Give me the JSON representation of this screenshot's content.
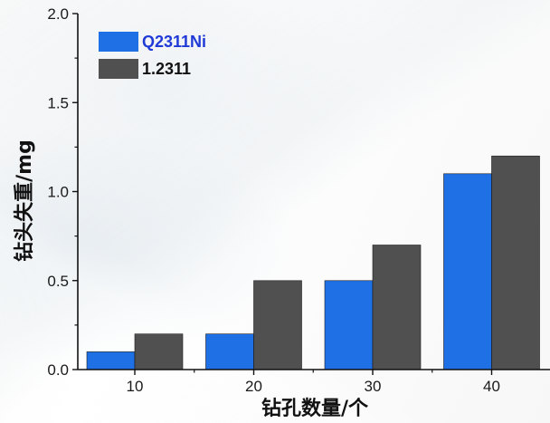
{
  "chart_data": {
    "type": "bar",
    "categories": [
      "10",
      "20",
      "30",
      "40"
    ],
    "series": [
      {
        "name": "Q2311Ni",
        "values": [
          0.1,
          0.2,
          0.5,
          1.1
        ],
        "color": "#1f6fe5"
      },
      {
        "name": "1.2311",
        "values": [
          0.2,
          0.5,
          0.7,
          1.2
        ],
        "color": "#505050"
      }
    ],
    "title": "",
    "xlabel": "钻孔数量/个",
    "ylabel": "钻头失重/mg",
    "ylim": [
      0,
      2.0
    ],
    "yticks": [
      0.0,
      0.5,
      1.0,
      1.5,
      2.0
    ],
    "ytick_labels": [
      "0.0",
      "0.5",
      "1.0",
      "1.5",
      "2.0"
    ],
    "grid": false,
    "legend_position": "top-left",
    "legend_label_colors": [
      "#1f3ad6",
      "#111111"
    ]
  }
}
